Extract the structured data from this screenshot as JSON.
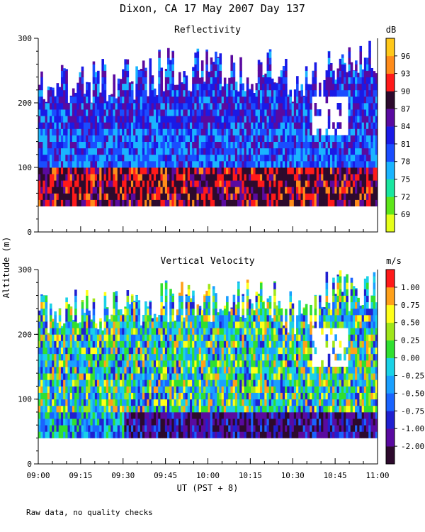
{
  "title": "Dixon, CA 17 May 2007  Day 137",
  "y_axis_label": "Altitude (m)",
  "x_axis_label": "UT  (PST + 8)",
  "footnote": "Raw data, no quality checks",
  "colors": {
    "reflectivity": [
      "#e5ff1a",
      "#5ee61a",
      "#1ae6a0",
      "#1ab4ff",
      "#1a4dff",
      "#1a1ae6",
      "#5a0aa0",
      "#2d0a2d",
      "#ff1a1a",
      "#ff8c1a",
      "#ffc81a"
    ],
    "velocity": [
      "#2d0a2d",
      "#5a0aa0",
      "#2020d0",
      "#1a64ff",
      "#1aa0ff",
      "#1ad2e6",
      "#30e030",
      "#a0e61a",
      "#ffff1a",
      "#ffa01a",
      "#ff1a1a"
    ]
  },
  "chart_data": [
    {
      "type": "heatmap",
      "title": "Reflectivity",
      "units": "dB",
      "x_range": [
        "09:00",
        "11:00"
      ],
      "x_ticks": [
        "09:00",
        "09:15",
        "09:30",
        "09:45",
        "10:00",
        "10:15",
        "10:30",
        "10:45",
        "11:00"
      ],
      "xlim_minutes": [
        0,
        120
      ],
      "ylim": [
        0,
        300
      ],
      "y_ticks": [
        0,
        100,
        200,
        300
      ],
      "colorbar_labels": [
        "96",
        "93",
        "90",
        "87",
        "84",
        "81",
        "78",
        "75",
        "72",
        "69"
      ],
      "colorbar_range": [
        69,
        99
      ],
      "data_altitude_range": [
        40,
        300
      ],
      "description_bands": [
        {
          "altitude": [
            40,
            100
          ],
          "dB": [
            87,
            92
          ]
        },
        {
          "altitude": [
            100,
            220
          ],
          "dB": [
            78,
            85
          ]
        },
        {
          "altitude": [
            220,
            300
          ],
          "dB": [
            84,
            87
          ]
        }
      ]
    },
    {
      "type": "heatmap",
      "title": "Vertical Velocity",
      "units": "m/s",
      "x_range": [
        "09:00",
        "11:00"
      ],
      "x_ticks": [
        "09:00",
        "09:15",
        "09:30",
        "09:45",
        "10:00",
        "10:15",
        "10:30",
        "10:45",
        "11:00"
      ],
      "xlim_minutes": [
        0,
        120
      ],
      "ylim": [
        0,
        300
      ],
      "y_ticks": [
        0,
        100,
        200,
        300
      ],
      "colorbar_labels": [
        "1.00",
        "0.75",
        "0.50",
        "0.25",
        "0.00",
        "-0.25",
        "-0.50",
        "-0.75",
        "-1.00",
        "-2.00"
      ],
      "colorbar_range": [
        -2.0,
        1.25
      ],
      "data_altitude_range": [
        40,
        300
      ],
      "description_bands": [
        {
          "altitude": [
            40,
            80
          ],
          "m_s": [
            -1.0,
            -0.5
          ]
        },
        {
          "altitude": [
            80,
            240
          ],
          "m_s": [
            -0.25,
            0.5
          ]
        }
      ]
    }
  ]
}
